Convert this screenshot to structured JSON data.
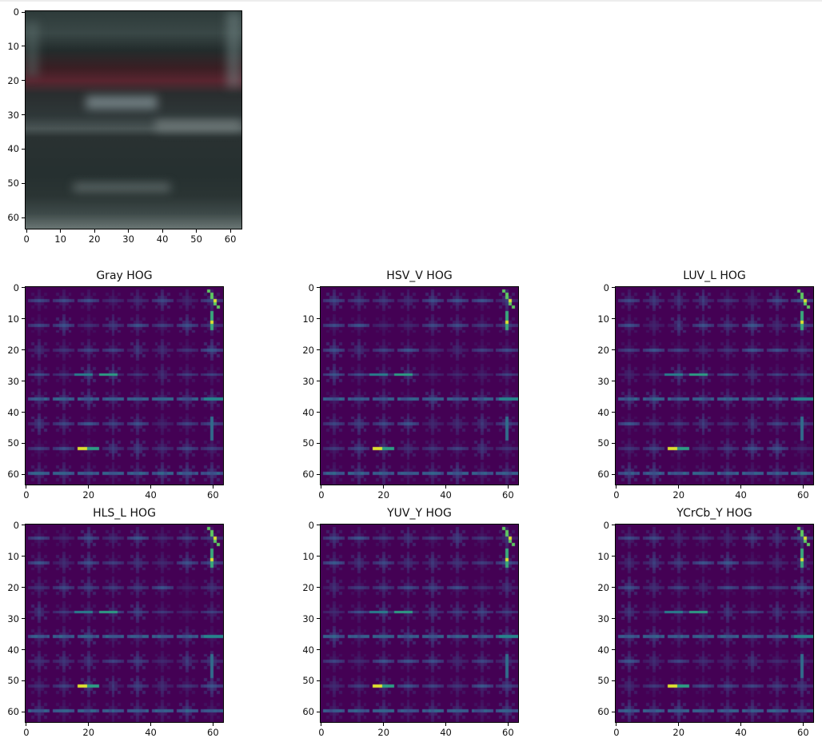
{
  "figure": {
    "image_panel": {
      "title": "",
      "content": "blurred grayscale photo of a car rear",
      "y_ticks": [
        "0",
        "10",
        "20",
        "30",
        "40",
        "50",
        "60"
      ],
      "x_ticks": [
        "0",
        "10",
        "20",
        "30",
        "40",
        "50",
        "60"
      ],
      "extent": [
        0,
        64
      ]
    },
    "hog_panels": [
      {
        "title": "Gray HOG",
        "y_ticks": [
          "0",
          "10",
          "20",
          "30",
          "40",
          "50",
          "60"
        ],
        "x_ticks": [
          "0",
          "20",
          "40",
          "60"
        ]
      },
      {
        "title": "HSV_V HOG",
        "y_ticks": [
          "0",
          "10",
          "20",
          "30",
          "40",
          "50",
          "60"
        ],
        "x_ticks": [
          "0",
          "20",
          "40",
          "60"
        ]
      },
      {
        "title": "LUV_L HOG",
        "y_ticks": [
          "0",
          "10",
          "20",
          "30",
          "40",
          "50",
          "60"
        ],
        "x_ticks": [
          "0",
          "20",
          "40",
          "60"
        ]
      },
      {
        "title": "HLS_L HOG",
        "y_ticks": [
          "0",
          "10",
          "20",
          "30",
          "40",
          "50",
          "60"
        ],
        "x_ticks": [
          "0",
          "20",
          "40",
          "60"
        ]
      },
      {
        "title": "YUV_Y HOG",
        "y_ticks": [
          "0",
          "10",
          "20",
          "30",
          "40",
          "50",
          "60"
        ],
        "x_ticks": [
          "0",
          "20",
          "40",
          "60"
        ]
      },
      {
        "title": "YCrCb_Y HOG",
        "y_ticks": [
          "0",
          "10",
          "20",
          "30",
          "40",
          "50",
          "60"
        ],
        "x_ticks": [
          "0",
          "20",
          "40",
          "60"
        ]
      }
    ],
    "colormap": "viridis",
    "colors": {
      "background": "#440154",
      "low": "#3b528b",
      "mid": "#21918c",
      "high": "#fde725"
    }
  }
}
